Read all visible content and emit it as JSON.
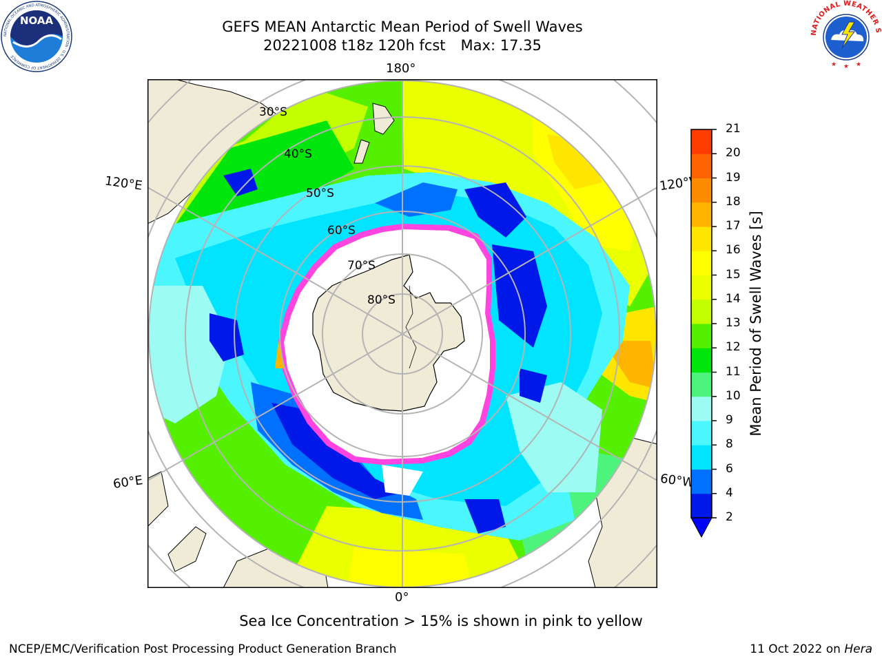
{
  "header": {
    "title_line1": "GEFS MEAN Antarctic Mean Period of Swell Waves",
    "title_date": "20221008 t18z 120h fcst",
    "title_max": "Max: 17.35"
  },
  "logos": {
    "noaa": {
      "text": "NOAA",
      "ring_text": "NATIONAL OCEANIC AND ATMOSPHERIC ADMINISTRATION · U.S. DEPARTMENT OF COMMERCE"
    },
    "nws": {
      "ring_text": "NATIONAL WEATHER SERVICE"
    }
  },
  "map": {
    "projection": "south-polar-stereographic",
    "longitude_labels": {
      "top": "180°",
      "upper_left": "120°E",
      "upper_right": "120°W",
      "lower_left": "60°E",
      "lower_right": "60°W",
      "bottom": "0°"
    },
    "latitude_labels": [
      "30°S",
      "40°S",
      "50°S",
      "60°S",
      "70°S",
      "80°S"
    ],
    "colors": {
      "land": "#efebd7",
      "ice": "#ffffff",
      "ice_edge": "#ff44e0",
      "grid": "#b4b4b4"
    }
  },
  "colorbar": {
    "label": "Mean Period of Swell Waves [s]",
    "ticks": [
      "2",
      "4",
      "6",
      "8",
      "9",
      "10",
      "11",
      "12",
      "13",
      "14",
      "15",
      "16",
      "17",
      "18",
      "19",
      "20",
      "21"
    ],
    "colors": [
      "#0018e8",
      "#0070ff",
      "#00e4ff",
      "#4cf6ff",
      "#9cfcf4",
      "#4cf47c",
      "#00e60c",
      "#55ef00",
      "#c4ff00",
      "#eaff00",
      "#ffff00",
      "#ffe600",
      "#ffb400",
      "#ff8c00",
      "#ff6400",
      "#ff3c00",
      "#ff0000"
    ],
    "underflow_color": "#0000ff"
  },
  "note": "Sea Ice Concentration > 15% is shown in pink to yellow",
  "footer": {
    "left": "NCEP/EMC/Verification Post Processing Product Generation Branch",
    "right_date": "11 Oct 2022 on",
    "right_host": "Hera"
  }
}
